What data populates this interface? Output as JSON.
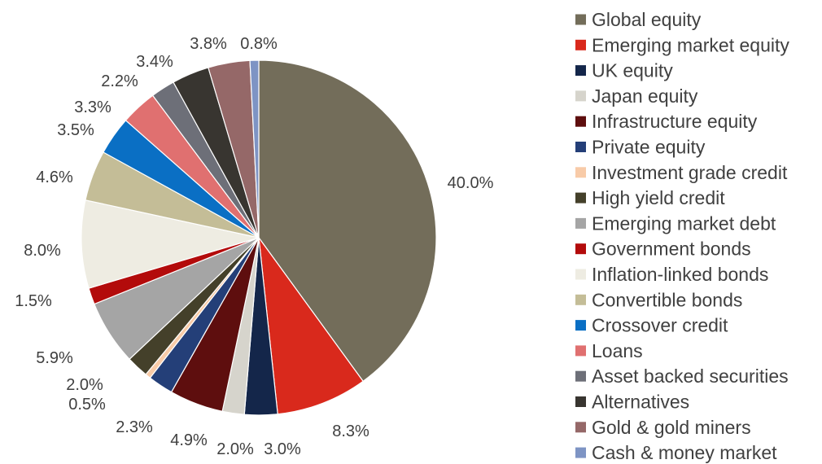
{
  "chart_data": {
    "type": "pie",
    "title": "",
    "legend_position": "right",
    "slices": [
      {
        "label": "Global equity",
        "value": 40.0,
        "value_label": "40.0%",
        "color": "#736d5a"
      },
      {
        "label": "Emerging market equity",
        "value": 8.3,
        "value_label": "8.3%",
        "color": "#d9291c"
      },
      {
        "label": "UK equity",
        "value": 3.0,
        "value_label": "3.0%",
        "color": "#14264a"
      },
      {
        "label": "Japan equity",
        "value": 2.0,
        "value_label": "2.0%",
        "color": "#d6d4cc"
      },
      {
        "label": "Infrastructure equity",
        "value": 4.9,
        "value_label": "4.9%",
        "color": "#5e0e0e"
      },
      {
        "label": "Private equity",
        "value": 2.3,
        "value_label": "2.3%",
        "color": "#243f78"
      },
      {
        "label": "Investment grade credit",
        "value": 0.5,
        "value_label": "0.5%",
        "color": "#f8cba8"
      },
      {
        "label": "High yield credit",
        "value": 2.0,
        "value_label": "2.0%",
        "color": "#44402a"
      },
      {
        "label": "Emerging market debt",
        "value": 5.9,
        "value_label": "5.9%",
        "color": "#a5a5a5"
      },
      {
        "label": "Government bonds",
        "value": 1.5,
        "value_label": "1.5%",
        "color": "#b30b0b"
      },
      {
        "label": "Inflation-linked bonds",
        "value": 8.0,
        "value_label": "8.0%",
        "color": "#eeece2"
      },
      {
        "label": "Convertible bonds",
        "value": 4.6,
        "value_label": "4.6%",
        "color": "#c4bd97"
      },
      {
        "label": "Crossover credit",
        "value": 3.5,
        "value_label": "3.5%",
        "color": "#0a6fc4"
      },
      {
        "label": "Loans",
        "value": 3.3,
        "value_label": "3.3%",
        "color": "#e07070"
      },
      {
        "label": "Asset backed securities",
        "value": 2.2,
        "value_label": "2.2%",
        "color": "#6d6f78"
      },
      {
        "label": "Alternatives",
        "value": 3.4,
        "value_label": "3.4%",
        "color": "#383530"
      },
      {
        "label": "Gold & gold miners",
        "value": 3.8,
        "value_label": "3.8%",
        "color": "#956868"
      },
      {
        "label": "Cash & money market",
        "value": 0.8,
        "value_label": "0.8%",
        "color": "#7e94c4"
      }
    ]
  }
}
